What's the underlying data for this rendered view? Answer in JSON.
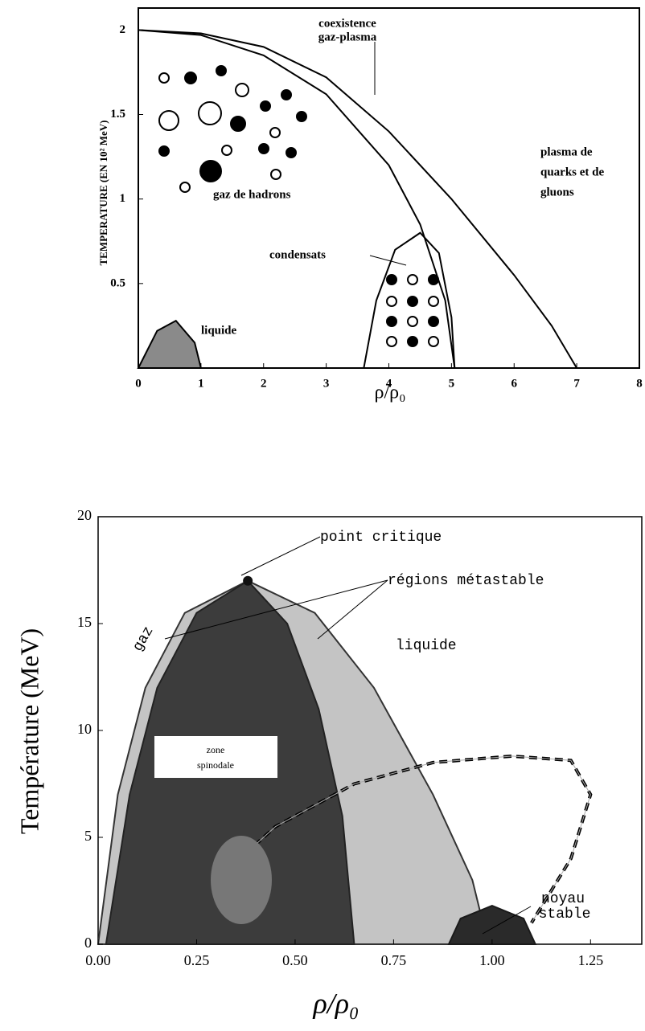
{
  "chart_data": [
    {
      "type": "area",
      "xlabel": "ρ/ρ₀",
      "ylabel": "TEMPERATURE (EN 10² MeV)",
      "xlim": [
        0,
        8
      ],
      "ylim": [
        0,
        2.13
      ],
      "xticks": [
        0,
        1,
        2,
        3,
        4,
        5,
        6,
        7,
        8
      ],
      "yticks": [
        0.5,
        1,
        1.5,
        2
      ],
      "series": [
        {
          "color": "#000000",
          "fill": null,
          "x": [
            0,
            1,
            2,
            3,
            4,
            5,
            6,
            6.6,
            7
          ],
          "y": [
            2,
            1.98,
            1.9,
            1.72,
            1.4,
            1.0,
            0.55,
            0.25,
            0
          ]
        },
        {
          "color": "#000000",
          "fill": null,
          "x": [
            0,
            1,
            2,
            3,
            4,
            4.5,
            4.9,
            5.05
          ],
          "y": [
            2,
            1.97,
            1.85,
            1.62,
            1.2,
            0.85,
            0.4,
            0
          ]
        },
        {
          "color": "#000000",
          "fill": null,
          "x": [
            3.6,
            3.8,
            4.1,
            4.5,
            4.8,
            5,
            5.05
          ],
          "y": [
            0,
            0.4,
            0.7,
            0.8,
            0.68,
            0.3,
            0
          ]
        },
        {
          "color": "#000000",
          "fill": "#8a8a8a",
          "x": [
            0,
            0.3,
            0.6,
            0.9,
            1
          ],
          "y": [
            0,
            0.22,
            0.28,
            0.15,
            0
          ]
        }
      ],
      "annotations": [
        [
          "coexistence",
          "gaz-plasma"
        ],
        [
          "plasma de",
          "quarks et de",
          "gluons"
        ],
        [
          "gaz de hadrons"
        ],
        [
          "condensats"
        ],
        [
          "liquide"
        ]
      ]
    },
    {
      "type": "area",
      "xlabel": "ρ/ρ₀",
      "ylabel": "Température (MeV)",
      "xlim": [
        0,
        1.38
      ],
      "ylim": [
        0,
        20
      ],
      "xticks": [
        {
          "value": 0,
          "label": "0.00"
        },
        0.25,
        {
          "value": 0.5,
          "label": "0.50"
        },
        0.75,
        {
          "value": 1,
          "label": "1.00"
        },
        1.25
      ],
      "yticks": [
        0,
        5,
        10,
        15,
        20
      ],
      "series": [
        {
          "color": "#333333",
          "fill": "#c4c4c4",
          "x": [
            0,
            0.05,
            0.12,
            0.22,
            0.38,
            0.55,
            0.7,
            0.85,
            0.95,
            0.99
          ],
          "y": [
            0,
            7,
            12,
            15.5,
            17,
            15.5,
            12,
            7,
            3,
            0
          ]
        },
        {
          "color": "#222222",
          "fill": "#3c3c3c",
          "x": [
            0.02,
            0.08,
            0.15,
            0.25,
            0.38,
            0.48,
            0.56,
            0.62,
            0.65
          ],
          "y": [
            0,
            7,
            12,
            15.5,
            17,
            15,
            11,
            6,
            0
          ]
        },
        {
          "color": "#1a1a1a",
          "fill": "#2a2a2a",
          "x": [
            0.89,
            0.92,
            1.0,
            1.08,
            1.11
          ],
          "y": [
            0,
            1.2,
            1.8,
            1.2,
            0
          ]
        },
        {
          "color": "#000000",
          "fill": null,
          "dashed": true,
          "x": [
            0.3,
            0.45,
            0.65,
            0.85,
            1.05,
            1.2,
            1.25,
            1.2,
            1.1
          ],
          "y": [
            3,
            5.5,
            7.5,
            8.5,
            8.8,
            8.6,
            7,
            4,
            1
          ]
        }
      ],
      "critical_point": {
        "x": 0.38,
        "y": 17
      },
      "annotations": [
        [
          "point critique"
        ],
        [
          "régions métastable"
        ],
        [
          "liquide"
        ],
        [
          "gaz"
        ],
        [
          "zone",
          "spinodale"
        ],
        [
          "noyau",
          "stable"
        ]
      ]
    }
  ]
}
